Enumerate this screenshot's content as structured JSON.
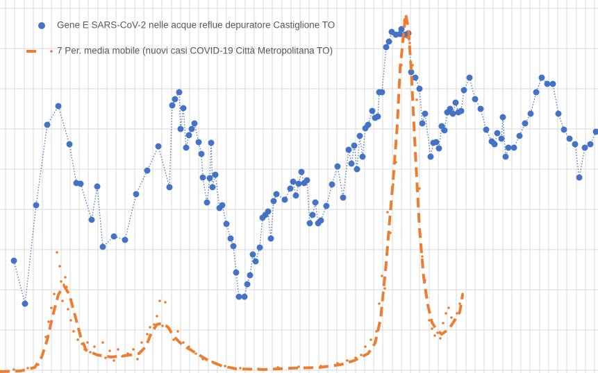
{
  "chart_data": {
    "type": "line",
    "xlim": [
      0,
      861
    ],
    "ylim": [
      -4,
      534
    ],
    "yticks": [
      0,
      58,
      116,
      174,
      232,
      290,
      348,
      406,
      464,
      522
    ],
    "xticks": [
      8,
      21,
      35,
      48,
      61,
      74,
      88,
      101,
      114,
      127,
      141,
      154,
      167,
      180,
      194,
      207,
      220,
      233,
      247,
      260,
      273,
      286,
      300,
      313,
      326,
      339,
      353,
      366,
      379,
      392,
      406,
      419,
      432,
      445,
      459,
      472,
      485,
      498,
      512,
      525,
      538,
      551,
      565,
      578,
      591,
      604,
      618,
      631,
      644,
      657,
      671,
      684,
      697,
      710,
      724,
      737,
      750,
      763,
      777,
      790,
      803,
      816,
      830,
      843,
      856
    ],
    "grid": true,
    "legend": "top-left",
    "series": [
      {
        "name": "Gene E SARS-CoV-2 nelle acque reflue depuratore Castiglione TO",
        "color": "#4472c4",
        "style": "dotted-markers",
        "x": [
          20,
          36,
          52,
          68,
          84,
          100,
          110,
          116,
          132,
          140,
          148,
          164,
          180,
          196,
          212,
          228,
          244,
          248,
          252,
          258,
          260,
          264,
          268,
          272,
          276,
          280,
          286,
          290,
          292,
          298,
          302,
          304,
          306,
          310,
          316,
          320,
          326,
          332,
          336,
          340,
          344,
          352,
          356,
          360,
          364,
          368,
          374,
          378,
          382,
          386,
          390,
          394,
          398,
          410,
          418,
          422,
          426,
          430,
          434,
          438,
          442,
          446,
          450,
          454,
          458,
          462,
          470,
          478,
          486,
          494,
          502,
          506,
          510,
          514,
          518,
          522,
          526,
          530,
          536,
          540,
          544,
          546,
          550,
          556,
          560,
          564,
          570,
          576,
          578,
          584,
          588,
          592,
          598,
          604,
          608,
          612,
          620,
          624,
          628,
          632,
          636,
          640,
          644,
          648,
          652,
          656,
          660,
          664,
          668,
          676,
          684,
          692,
          700,
          708,
          712,
          716,
          722,
          724,
          728,
          732,
          740,
          748,
          756,
          764,
          772,
          780,
          788,
          796,
          804,
          812,
          820,
          828,
          834,
          842,
          850,
          858
        ],
        "values": [
          158,
          96,
          238,
          354,
          381,
          326,
          270,
          269,
          217,
          265,
          178,
          193,
          188,
          254,
          288,
          323,
          264,
          382,
          391,
          401,
          348,
          378,
          321,
          339,
          348,
          356,
          329,
          312,
          278,
          242,
          277,
          328,
          264,
          282,
          234,
          238,
          211,
          190,
          179,
          141,
          106,
          106,
          124,
          137,
          167,
          157,
          177,
          220,
          224,
          229,
          190,
          244,
          254,
          246,
          262,
          272,
          252,
          269,
          286,
          270,
          274,
          212,
          224,
          242,
          212,
          216,
          237,
          268,
          294,
          249,
          318,
          298,
          324,
          290,
          338,
          308,
          349,
          354,
          374,
          364,
          366,
          401,
          401,
          466,
          474,
          488,
          484,
          485,
          492,
          484,
          486,
          430,
          422,
          406,
          356,
          370,
          308,
          328,
          329,
          320,
          352,
          346,
          372,
          377,
          370,
          386,
          372,
          374,
          404,
          422,
          391,
          377,
          347,
          330,
          326,
          342,
          334,
          365,
          308,
          321,
          321,
          338,
          356,
          370,
          401,
          422,
          413,
          413,
          370,
          347,
          334,
          326,
          278,
          321,
          326,
          344
        ]
      },
      {
        "name": "7 Per. media mobile (nuovi casi COVID-19 Città Metropolitana TO)",
        "color": "#ed7d31",
        "style": "dashed",
        "x": [
          0,
          30,
          50,
          60,
          68,
          76,
          84,
          92,
          100,
          108,
          116,
          124,
          140,
          160,
          180,
          200,
          210,
          218,
          226,
          234,
          242,
          250,
          260,
          270,
          280,
          300,
          320,
          340,
          380,
          420,
          460,
          490,
          510,
          530,
          540,
          548,
          552,
          556,
          560,
          566,
          572,
          576,
          580,
          584,
          588,
          592,
          598,
          604,
          610,
          616,
          622,
          628,
          636,
          646,
          656,
          662,
          666
        ],
        "values": [
          -2,
          -1,
          4,
          19,
          44,
          79,
          109,
          122,
          109,
          79,
          49,
          29,
          22,
          19,
          21,
          24,
          34,
          54,
          66,
          68,
          62,
          49,
          39,
          32,
          26,
          14,
          6,
          2,
          1,
          3,
          4,
          8,
          14,
          24,
          39,
          74,
          114,
          154,
          204,
          274,
          354,
          434,
          474,
          514,
          494,
          434,
          314,
          204,
          134,
          94,
          69,
          59,
          52,
          59,
          74,
          84,
          109
        ]
      },
      {
        "color": "#ed7d31",
        "style": "dots",
        "x": [
          20,
          40,
          55,
          62,
          66,
          70,
          74,
          78,
          82,
          86,
          88,
          90,
          94,
          96,
          98,
          102,
          106,
          112,
          118,
          122,
          126,
          130,
          136,
          142,
          148,
          152,
          158,
          164,
          170,
          176,
          184,
          192,
          198,
          204,
          212,
          216,
          222,
          226,
          230,
          234,
          238,
          244,
          250,
          256,
          264,
          272,
          282,
          292,
          306,
          324,
          346,
          372,
          400,
          430,
          462,
          486,
          500,
          512,
          520,
          526,
          534,
          542,
          546,
          550,
          554,
          558,
          562,
          566,
          570,
          574,
          578,
          582,
          586,
          590,
          594,
          600,
          604,
          608,
          612,
          618,
          622,
          626,
          630,
          634,
          638,
          642,
          646,
          650,
          654,
          658,
          662,
          666
        ],
        "values": [
          1,
          3,
          8,
          25,
          48,
          70,
          90,
          110,
          170,
          150,
          128,
          100,
          134,
          120,
          88,
          72,
          56,
          44,
          38,
          30,
          40,
          26,
          34,
          22,
          40,
          18,
          28,
          14,
          30,
          20,
          24,
          30,
          16,
          40,
          52,
          62,
          66,
          78,
          100,
          64,
          98,
          60,
          44,
          56,
          40,
          34,
          24,
          16,
          12,
          6,
          3,
          2,
          4,
          5,
          6,
          10,
          14,
          18,
          22,
          34,
          44,
          56,
          96,
          136,
          118,
          228,
          198,
          268,
          300,
          388,
          440,
          504,
          480,
          472,
          440,
          390,
          262,
          164,
          130,
          72,
          60,
          50,
          54,
          46,
          68,
          82,
          90,
          76,
          72,
          82,
          96,
          110
        ]
      }
    ]
  }
}
